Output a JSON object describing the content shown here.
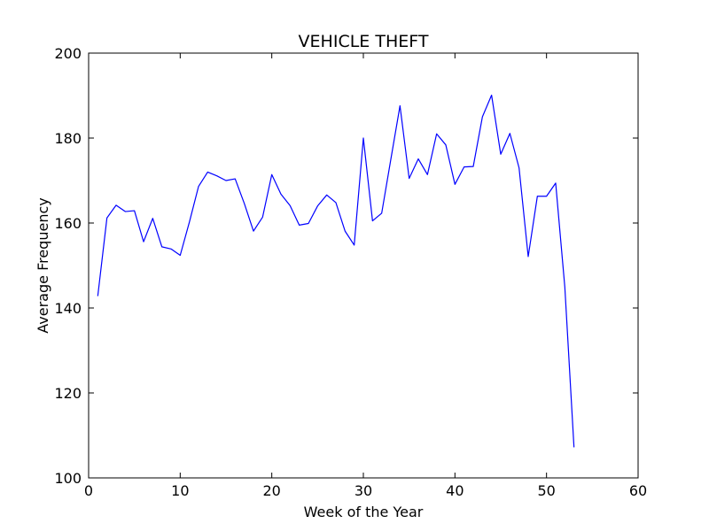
{
  "chart_data": {
    "type": "line",
    "title": "VEHICLE THEFT",
    "xlabel": "Week of the Year",
    "ylabel": "Average Frequency",
    "xlim": [
      0,
      60
    ],
    "ylim": [
      100,
      200
    ],
    "xticks": [
      0,
      10,
      20,
      30,
      40,
      50,
      60
    ],
    "yticks": [
      100,
      120,
      140,
      160,
      180,
      200
    ],
    "grid": false,
    "line_color": "#0000ff",
    "series": [
      {
        "x": [
          1,
          2,
          3,
          4,
          5,
          6,
          7,
          8,
          9,
          10,
          11,
          12,
          13,
          14,
          15,
          16,
          17,
          18,
          19,
          20,
          21,
          22,
          23,
          24,
          25,
          26,
          27,
          28,
          29,
          30,
          31,
          32,
          33,
          34,
          35,
          36,
          37,
          38,
          39,
          40,
          41,
          42,
          43,
          44,
          45,
          46,
          47,
          48,
          49,
          50,
          51,
          52,
          53
        ],
        "values": [
          142.8,
          161.2,
          164.2,
          162.7,
          162.9,
          155.6,
          161.1,
          154.4,
          153.9,
          152.4,
          160.2,
          168.6,
          172.0,
          171.1,
          170.0,
          170.4,
          164.6,
          158.1,
          161.4,
          171.4,
          166.8,
          164.1,
          159.5,
          159.9,
          164.0,
          166.6,
          164.8,
          158.1,
          154.8,
          180.0,
          160.5,
          162.3,
          175.0,
          187.6,
          170.5,
          175.1,
          171.4,
          181.0,
          178.4,
          169.1,
          173.2,
          173.3,
          185.0,
          190.1,
          176.2,
          181.1,
          173.0,
          152.1,
          166.3,
          166.3,
          169.4,
          144.9,
          107.2
        ]
      }
    ]
  }
}
